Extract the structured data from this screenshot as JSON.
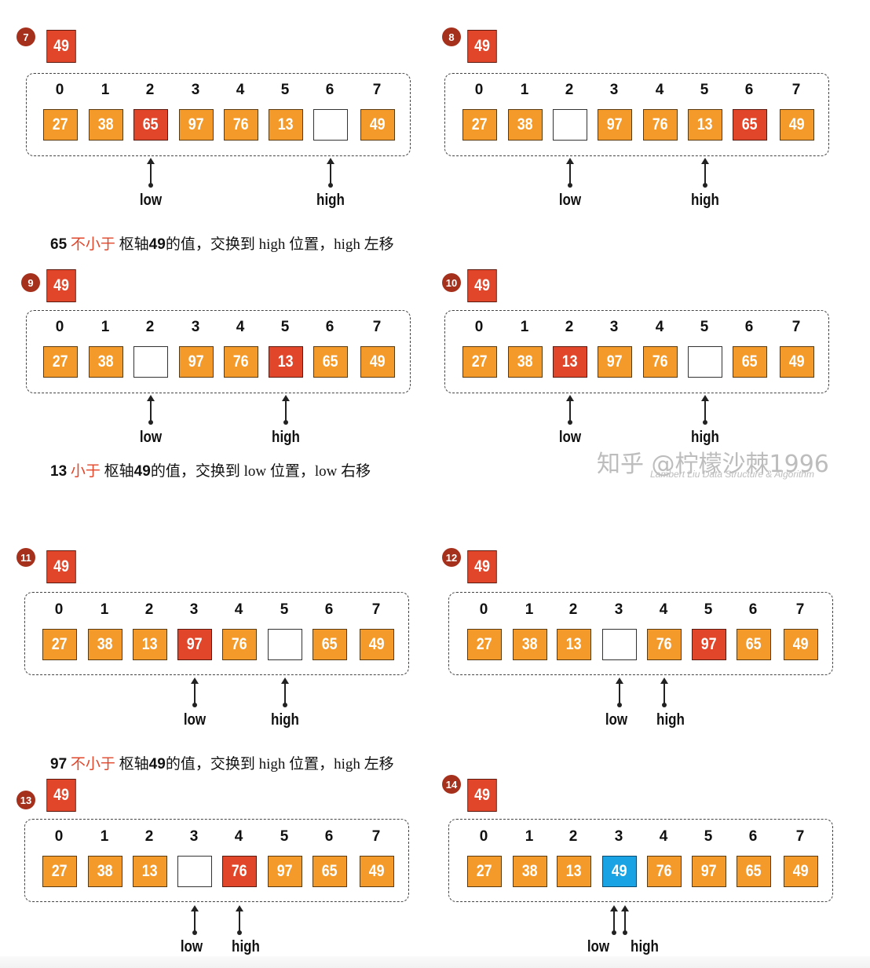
{
  "pivot_value": "49",
  "index_labels": [
    "0",
    "1",
    "2",
    "3",
    "4",
    "5",
    "6",
    "7"
  ],
  "pointer_labels": {
    "low": "low",
    "high": "high"
  },
  "colors": {
    "normal": "#f49a2a",
    "moved": "#e2462a",
    "placed_pivot": "#1aa3e4",
    "empty": "#ffffff",
    "badge": "#a5301c"
  },
  "steps": [
    {
      "step": "7",
      "cells": [
        "27",
        "38",
        "65",
        "97",
        "76",
        "13",
        "",
        "49"
      ],
      "states": [
        "normal",
        "normal",
        "red",
        "normal",
        "normal",
        "normal",
        "empty",
        "normal"
      ],
      "low_index": 2,
      "high_index": 6
    },
    {
      "step": "8",
      "cells": [
        "27",
        "38",
        "",
        "97",
        "76",
        "13",
        "65",
        "49"
      ],
      "states": [
        "normal",
        "normal",
        "empty",
        "normal",
        "normal",
        "normal",
        "red",
        "normal"
      ],
      "low_index": 2,
      "high_index": 5
    },
    {
      "step": "9",
      "cells": [
        "27",
        "38",
        "",
        "97",
        "76",
        "13",
        "65",
        "49"
      ],
      "states": [
        "normal",
        "normal",
        "empty",
        "normal",
        "normal",
        "red",
        "normal",
        "normal"
      ],
      "low_index": 2,
      "high_index": 5
    },
    {
      "step": "10",
      "cells": [
        "27",
        "38",
        "13",
        "97",
        "76",
        "",
        "65",
        "49"
      ],
      "states": [
        "normal",
        "normal",
        "red",
        "normal",
        "normal",
        "empty",
        "normal",
        "normal"
      ],
      "low_index": 2,
      "high_index": 5
    },
    {
      "step": "11",
      "cells": [
        "27",
        "38",
        "13",
        "97",
        "76",
        "",
        "65",
        "49"
      ],
      "states": [
        "normal",
        "normal",
        "normal",
        "red",
        "normal",
        "empty",
        "normal",
        "normal"
      ],
      "low_index": 3,
      "high_index": 5
    },
    {
      "step": "12",
      "cells": [
        "27",
        "38",
        "13",
        "",
        "76",
        "97",
        "65",
        "49"
      ],
      "states": [
        "normal",
        "normal",
        "normal",
        "empty",
        "normal",
        "red",
        "normal",
        "normal"
      ],
      "low_index": 3,
      "high_index": 4
    },
    {
      "step": "13",
      "cells": [
        "27",
        "38",
        "13",
        "",
        "76",
        "97",
        "65",
        "49"
      ],
      "states": [
        "normal",
        "normal",
        "normal",
        "empty",
        "red",
        "normal",
        "normal",
        "normal"
      ],
      "low_index": 3,
      "high_index": 4
    },
    {
      "step": "14",
      "cells": [
        "27",
        "38",
        "13",
        "49",
        "76",
        "97",
        "65",
        "49"
      ],
      "states": [
        "normal",
        "normal",
        "normal",
        "blue",
        "normal",
        "normal",
        "normal",
        "normal"
      ],
      "low_index": 3,
      "high_index": 3
    }
  ],
  "captions": [
    {
      "num": "65",
      "highlight": "不小于",
      "rest1": "枢轴",
      "pivot": "49",
      "rest2": "的值，交换到 high 位置，high 左移"
    },
    {
      "num": "13",
      "highlight": "小于",
      "rest1": "枢轴",
      "pivot": "49",
      "rest2": "的值，交换到 low 位置，low 右移"
    },
    {
      "num": "97",
      "highlight": "不小于",
      "rest1": "枢轴",
      "pivot": "49",
      "rest2": "的值，交换到 high 位置，high 左移"
    }
  ],
  "watermark": {
    "main": "知乎 @柠檬沙棘1996",
    "sub": "Lambert Liu    Data Structure & Algorithm"
  }
}
